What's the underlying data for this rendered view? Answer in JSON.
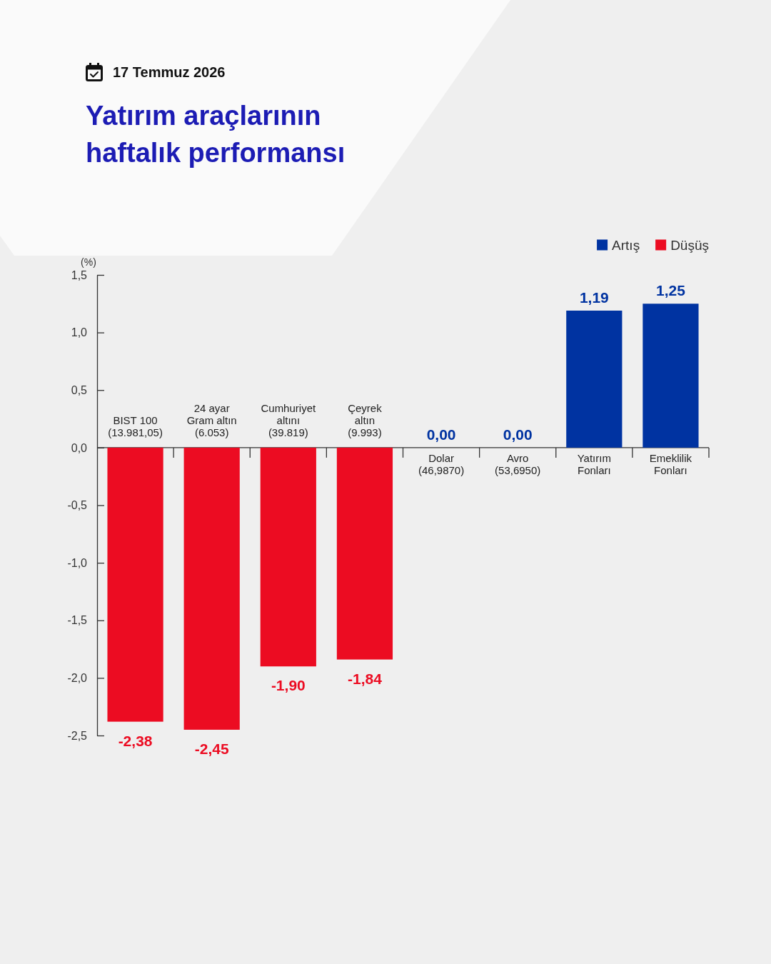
{
  "chart_data": {
    "type": "bar",
    "subtitle": "17 Temmuz 2026",
    "title": "Yatırım araçlarının haftalık performansı",
    "ylabel": "(%)",
    "categories": [
      "BIST 100\n(13.981,05)",
      "24 ayar\nGram altın\n(6.053)",
      "Cumhuriyet\naltını\n(39.819)",
      "Çeyrek\naltın\n(9.993)",
      "Dolar\n(46,9870)",
      "Avro\n(53,6950)",
      "Yatırım\nFonları",
      "Emeklilik\nFonları"
    ],
    "series": [
      {
        "name": "Artış",
        "color": "#0033a1",
        "values": [
          null,
          null,
          null,
          null,
          0,
          0,
          1.19,
          1.25
        ],
        "value_labels": [
          null,
          null,
          null,
          null,
          "0,00",
          "0,00",
          "1,19",
          "1,25"
        ]
      },
      {
        "name": "Düşüş",
        "color": "#ec0c22",
        "values": [
          -2.38,
          -2.45,
          -1.9,
          -1.84,
          null,
          null,
          null,
          null
        ],
        "value_labels": [
          "-2,38",
          "-2,45",
          "-1,90",
          "-1,84",
          null,
          null,
          null,
          null
        ]
      }
    ],
    "ylim": [
      -2.5,
      1.5
    ],
    "yticks": [
      {
        "value": 1.5,
        "label": "1,5"
      },
      {
        "value": 1,
        "label": "1,0"
      },
      {
        "value": 0.5,
        "label": "0,5"
      },
      {
        "value": 0,
        "label": "0,0"
      },
      {
        "value": -0.5,
        "label": "-0,5"
      },
      {
        "value": -1,
        "label": "-1,0"
      },
      {
        "value": -1.5,
        "label": "-1,5"
      },
      {
        "value": -2,
        "label": "-2,0"
      },
      {
        "value": -2.5,
        "label": "-2,5"
      }
    ],
    "legend": "top right"
  }
}
